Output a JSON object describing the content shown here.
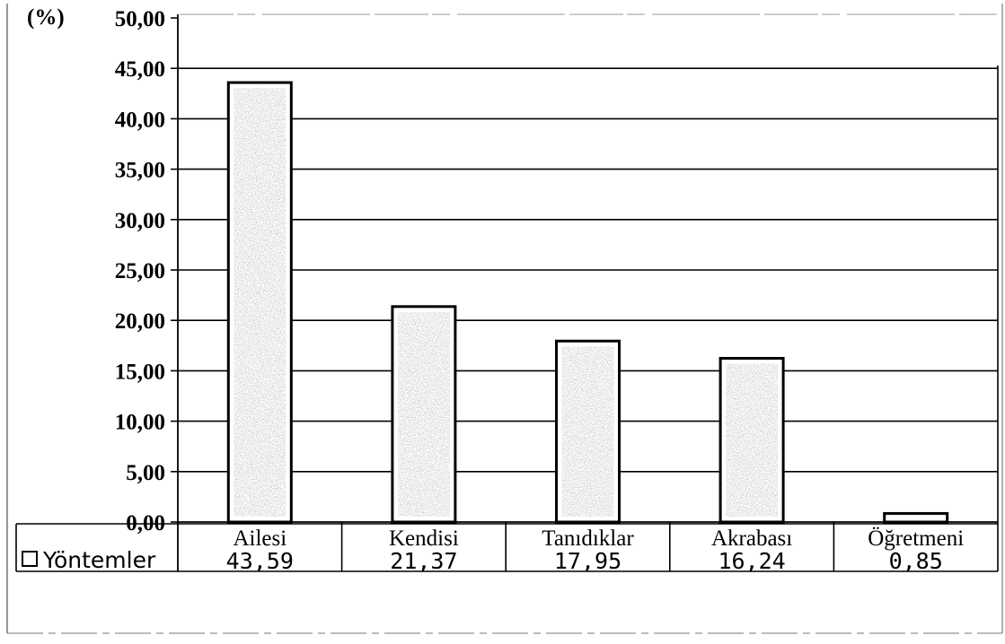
{
  "chart_data": {
    "type": "bar",
    "unit_label": "(%)",
    "categories": [
      "Ailesi",
      "Kendisi",
      "Tanıdıklar",
      "Akrabası",
      "Öğretmeni"
    ],
    "series": [
      {
        "name": "Yöntemler",
        "values": [
          43.59,
          21.37,
          17.95,
          16.24,
          0.85
        ],
        "value_labels": [
          "43,59",
          "21,37",
          "17,95",
          "16,24",
          "0,85"
        ]
      }
    ],
    "ylim": [
      0,
      50
    ],
    "ytick_labels": [
      "0,00",
      "5,00",
      "10,00",
      "15,00",
      "20,00",
      "25,00",
      "30,00",
      "35,00",
      "40,00",
      "45,00",
      "50,00"
    ],
    "grid": true,
    "legend_placement": "data-table-left",
    "bar_fill": "#ffffff",
    "bar_texture": "#d4d4d4",
    "line_color": "#000000"
  }
}
